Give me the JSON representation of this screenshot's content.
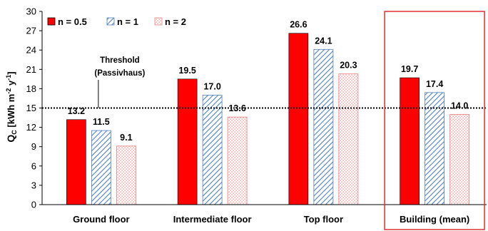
{
  "chart_data": {
    "type": "bar",
    "categories": [
      "Ground floor",
      "Intermediate floor",
      "Top floor",
      "Building (mean)"
    ],
    "series": [
      {
        "name": "n = 0.5",
        "values": [
          13.2,
          19.5,
          26.6,
          19.7
        ],
        "color": "#ff0000"
      },
      {
        "name": "n = 1",
        "values": [
          11.5,
          17.0,
          24.1,
          17.4
        ],
        "color": "#4f81bd"
      },
      {
        "name": "n = 2",
        "values": [
          9.1,
          13.6,
          20.3,
          14.0
        ],
        "color": "#f08080"
      }
    ],
    "data_labels": [
      [
        "13.2",
        "19.5",
        "26.6",
        "19.7"
      ],
      [
        "11.5",
        "17.0",
        "24.1",
        "17.4"
      ],
      [
        "9.1",
        "13.6",
        "20.3",
        "14.0"
      ]
    ],
    "ylabel_main": "Q",
    "ylabel_sub": "C",
    "ylabel_units": "[kWh m",
    "ylabel_sup1": "-2",
    "ylabel_mid": " y",
    "ylabel_sup2": "-1",
    "ylabel_end": "]",
    "ylim": [
      0,
      30
    ],
    "yticks": [
      "0",
      "3",
      "6",
      "9",
      "12",
      "15",
      "18",
      "21",
      "24",
      "27",
      "30"
    ],
    "threshold": {
      "value": 15,
      "line1": "Threshold",
      "line2": "(Passivhaus)"
    },
    "highlight_category": "Building (mean)",
    "highlight_color": "#e03030",
    "legend_position": "top-left",
    "grid": false
  }
}
